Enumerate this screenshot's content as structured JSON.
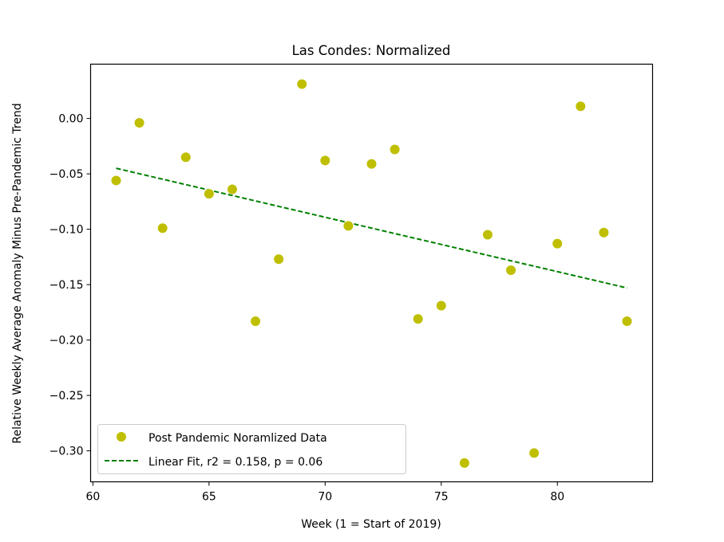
{
  "chart_data": {
    "type": "scatter",
    "title": "Las Condes: Normalized",
    "xlabel": "Week (1 = Start of 2019)",
    "ylabel": "Relative Weekly Average Anomaly Minus Pre-Pandemic Trend",
    "xlim": [
      59.9,
      84.1
    ],
    "ylim": [
      -0.328,
      0.049
    ],
    "xticks": [
      60,
      65,
      70,
      75,
      80
    ],
    "yticks": [
      0.0,
      -0.05,
      -0.1,
      -0.15,
      -0.2,
      -0.25,
      -0.3
    ],
    "xtick_labels": [
      "60",
      "65",
      "70",
      "75",
      "80"
    ],
    "ytick_labels": [
      "0.00",
      "−0.05",
      "−0.10",
      "−0.15",
      "−0.20",
      "−0.25",
      "−0.30"
    ],
    "grid": false,
    "legend_position": "lower-left",
    "series": [
      {
        "name": "Post Pandemic Noramlized Data",
        "kind": "points",
        "color": "#bfbf00",
        "x": [
          61,
          62,
          63,
          64,
          65,
          66,
          67,
          68,
          69,
          70,
          71,
          72,
          73,
          74,
          75,
          76,
          77,
          78,
          79,
          80,
          81,
          82,
          83
        ],
        "y": [
          -0.056,
          -0.004,
          -0.099,
          -0.035,
          -0.068,
          -0.064,
          -0.183,
          -0.127,
          0.031,
          -0.038,
          -0.097,
          -0.041,
          -0.028,
          -0.181,
          -0.169,
          -0.311,
          -0.105,
          -0.137,
          -0.302,
          -0.113,
          0.011,
          -0.103,
          -0.183
        ]
      },
      {
        "name": "Linear Fit, r2 = 0.158, p = 0.06",
        "kind": "dashed-line",
        "color": "#008000",
        "x": [
          61,
          83
        ],
        "y": [
          -0.045,
          -0.153
        ]
      }
    ]
  }
}
